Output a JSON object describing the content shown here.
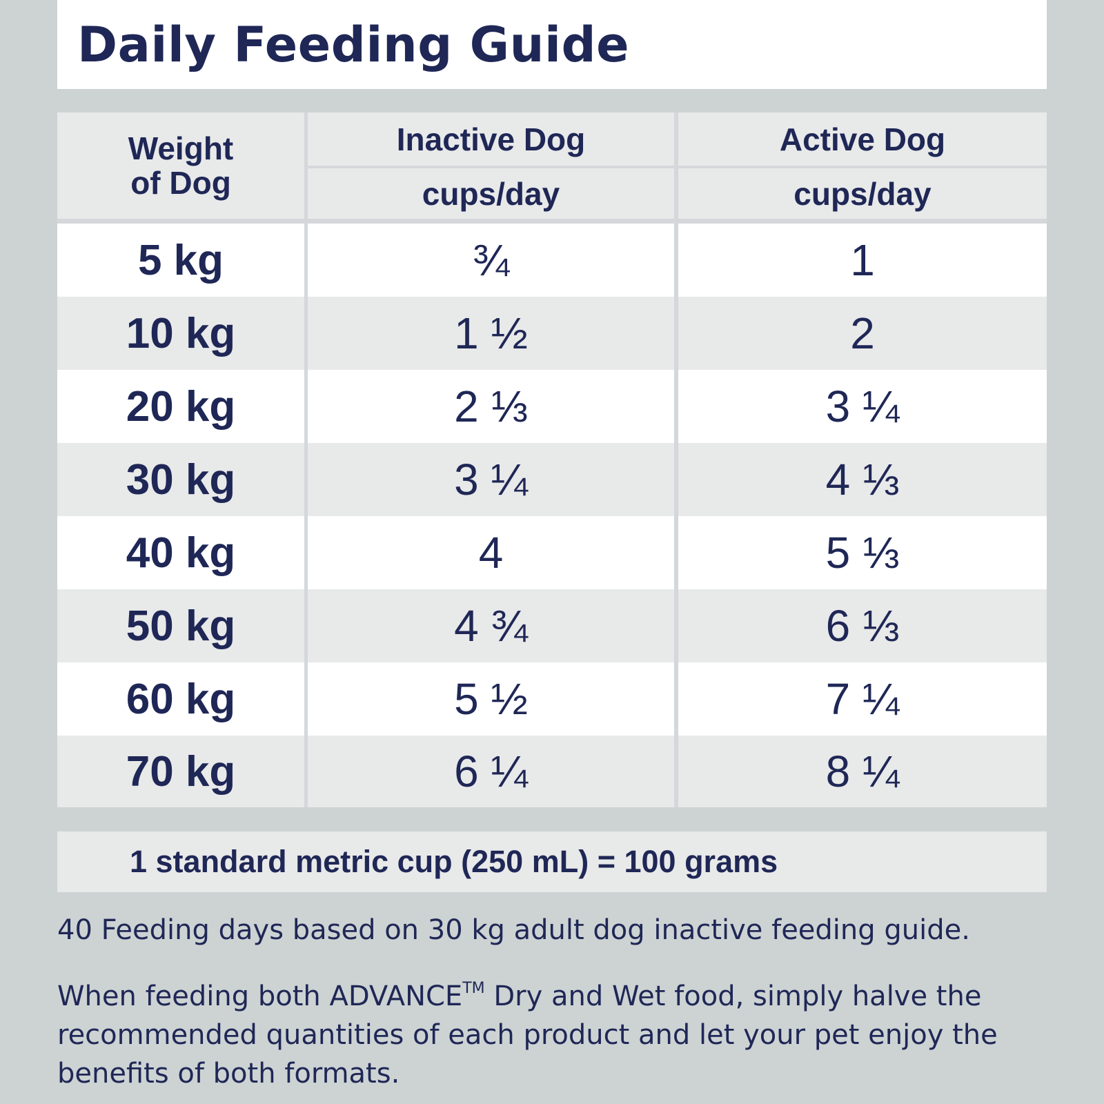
{
  "title": "Daily Feeding Guide",
  "table": {
    "header": {
      "weight": [
        "Weight",
        "of Dog"
      ],
      "inactive": "Inactive Dog",
      "active": "Active Dog",
      "unit": "cups/day"
    },
    "rows": [
      {
        "weight": "5 kg",
        "inactive": "¾",
        "active": "1"
      },
      {
        "weight": "10 kg",
        "inactive": "1 ½",
        "active": "2"
      },
      {
        "weight": "20 kg",
        "inactive": "2 ⅓",
        "active": "3 ¼"
      },
      {
        "weight": "30 kg",
        "inactive": "3 ¼",
        "active": "4 ⅓"
      },
      {
        "weight": "40 kg",
        "inactive": "4",
        "active": "5 ⅓"
      },
      {
        "weight": "50 kg",
        "inactive": "4 ¾",
        "active": "6 ⅓"
      },
      {
        "weight": "60 kg",
        "inactive": "5 ½",
        "active": "7 ¼"
      },
      {
        "weight": "70 kg",
        "inactive": "6 ¼",
        "active": "8 ¼"
      }
    ]
  },
  "cup_note": "1 standard metric cup (250 mL) = 100 grams",
  "footnote1": "40 Feeding days based on 30 kg adult dog inactive feeding guide.",
  "footnote2": {
    "part1": "When feeding both ADVANCE",
    "tm": "TM",
    "part2": " Dry and Wet food, simply halve the recommended quantities of each product and let your pet enjoy the benefits of both formats."
  }
}
